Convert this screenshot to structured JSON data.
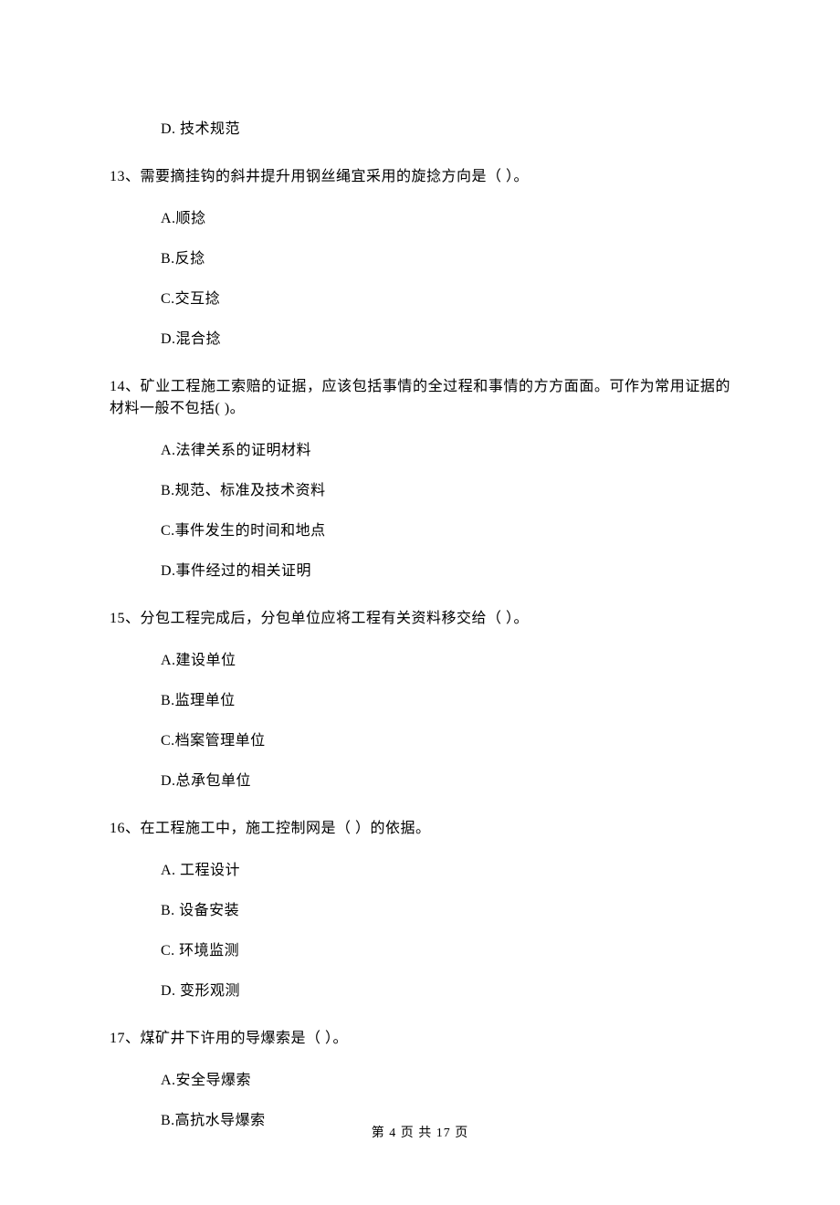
{
  "q12": {
    "optD": "D.  技术规范"
  },
  "q13": {
    "stem": "13、需要摘挂钩的斜井提升用钢丝绳宜采用的旋捻方向是（   ）。",
    "A": "A.顺捻",
    "B": "B.反捻",
    "C": "C.交互捻",
    "D": "D.混合捻"
  },
  "q14": {
    "stem": "14、矿业工程施工索赔的证据，应该包括事情的全过程和事情的方方面面。可作为常用证据的材料一般不包括(   )。",
    "A": "A.法律关系的证明材料",
    "B": "B.规范、标准及技术资料",
    "C": "C.事件发生的时间和地点",
    "D": "D.事件经过的相关证明"
  },
  "q15": {
    "stem": "15、分包工程完成后，分包单位应将工程有关资料移交给（   ）。",
    "A": "A.建设单位",
    "B": "B.监理单位",
    "C": "C.档案管理单位",
    "D": "D.总承包单位"
  },
  "q16": {
    "stem": "16、在工程施工中，施工控制网是（   ）的依据。",
    "A": "A.  工程设计",
    "B": "B.  设备安装",
    "C": "C.  环境监测",
    "D": "D.  变形观测"
  },
  "q17": {
    "stem": "17、煤矿井下许用的导爆索是（   ）。",
    "A": "A.安全导爆索",
    "B": "B.高抗水导爆索"
  },
  "footer": "第 4 页 共 17 页"
}
